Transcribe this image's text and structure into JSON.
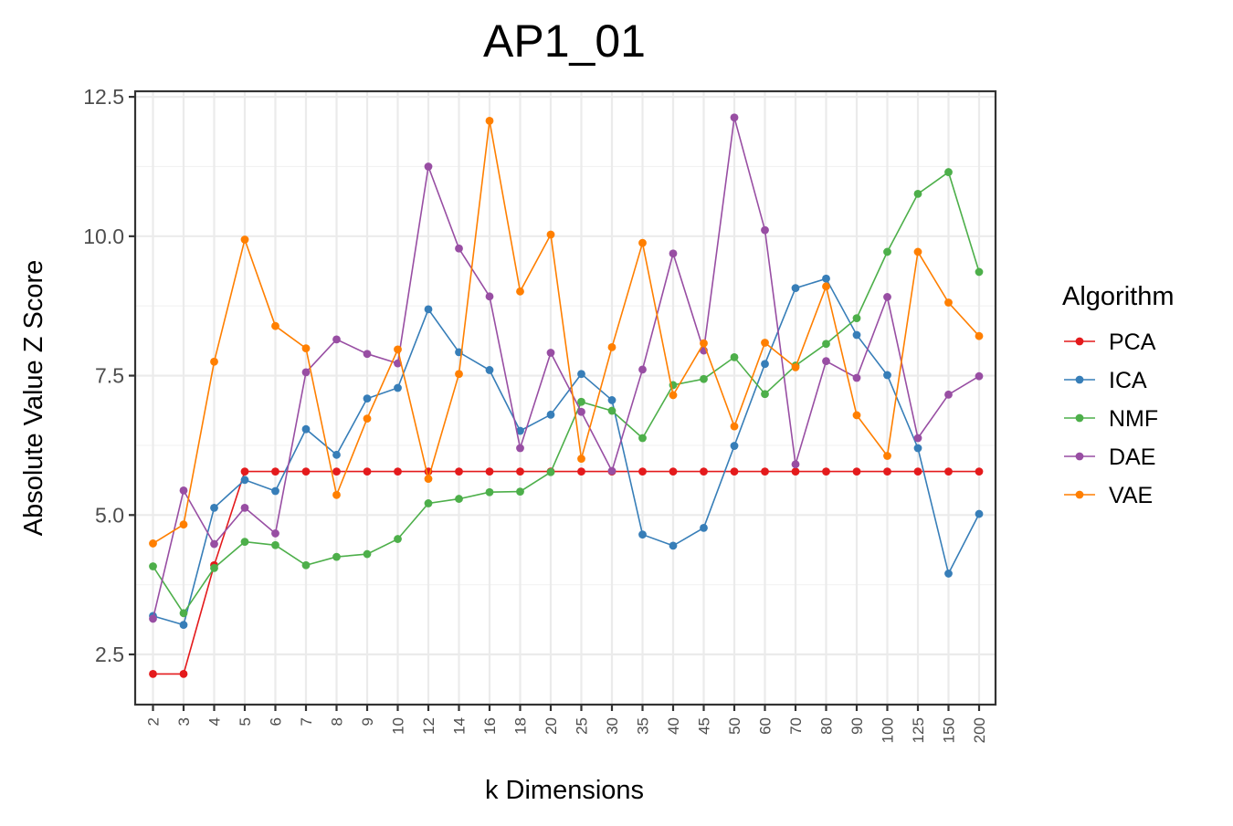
{
  "chart_data": {
    "type": "line",
    "title": "AP1_01",
    "xlabel": "k Dimensions",
    "ylabel": "Absolute Value Z Score",
    "categories": [
      "2",
      "3",
      "4",
      "5",
      "6",
      "7",
      "8",
      "9",
      "10",
      "12",
      "14",
      "16",
      "18",
      "20",
      "25",
      "30",
      "35",
      "40",
      "45",
      "50",
      "60",
      "70",
      "80",
      "90",
      "100",
      "125",
      "150",
      "200"
    ],
    "yticks": [
      "2.5",
      "5.0",
      "7.5",
      "10.0",
      "12.5"
    ],
    "ylim": [
      1.6,
      12.6
    ],
    "grid": true,
    "legend_title": "Algorithm",
    "legend_position": "right",
    "series": [
      {
        "name": "PCA",
        "color": "#e41a1c",
        "values": [
          2.15,
          2.15,
          4.1,
          5.78,
          5.78,
          5.78,
          5.78,
          5.78,
          5.78,
          5.78,
          5.78,
          5.78,
          5.78,
          5.78,
          5.78,
          5.78,
          5.78,
          5.78,
          5.78,
          5.78,
          5.78,
          5.78,
          5.78,
          5.78,
          5.78,
          5.78,
          5.78,
          5.78
        ]
      },
      {
        "name": "ICA",
        "color": "#377eb8",
        "values": [
          3.19,
          3.03,
          5.13,
          5.63,
          5.43,
          6.54,
          6.08,
          7.09,
          7.28,
          8.69,
          7.92,
          7.6,
          6.51,
          6.8,
          7.53,
          7.06,
          4.65,
          4.45,
          4.77,
          6.24,
          7.71,
          9.07,
          9.24,
          8.23,
          7.51,
          6.2,
          3.95,
          5.02
        ]
      },
      {
        "name": "NMF",
        "color": "#4daf4a",
        "values": [
          4.08,
          3.24,
          4.05,
          4.52,
          4.46,
          4.1,
          4.25,
          4.3,
          4.57,
          5.21,
          5.29,
          5.41,
          5.42,
          5.77,
          7.03,
          6.87,
          6.38,
          7.33,
          7.44,
          7.83,
          7.17,
          7.68,
          8.07,
          8.53,
          9.72,
          10.76,
          11.15,
          9.36
        ]
      },
      {
        "name": "DAE",
        "color": "#984ea3",
        "values": [
          3.14,
          5.44,
          4.48,
          5.13,
          4.67,
          7.56,
          8.15,
          7.89,
          7.72,
          11.25,
          9.78,
          8.92,
          6.2,
          7.91,
          6.85,
          5.79,
          7.61,
          9.69,
          7.95,
          12.13,
          10.11,
          5.91,
          7.76,
          7.46,
          8.91,
          6.38,
          7.16,
          7.49
        ]
      },
      {
        "name": "VAE",
        "color": "#ff7f00",
        "values": [
          4.49,
          4.83,
          7.75,
          9.94,
          8.39,
          7.99,
          5.36,
          6.73,
          7.97,
          5.65,
          7.53,
          12.07,
          9.01,
          10.03,
          6.01,
          8.01,
          9.88,
          7.15,
          8.08,
          6.59,
          8.09,
          7.65,
          9.1,
          6.79,
          6.06,
          9.72,
          8.81,
          8.21
        ]
      }
    ]
  }
}
